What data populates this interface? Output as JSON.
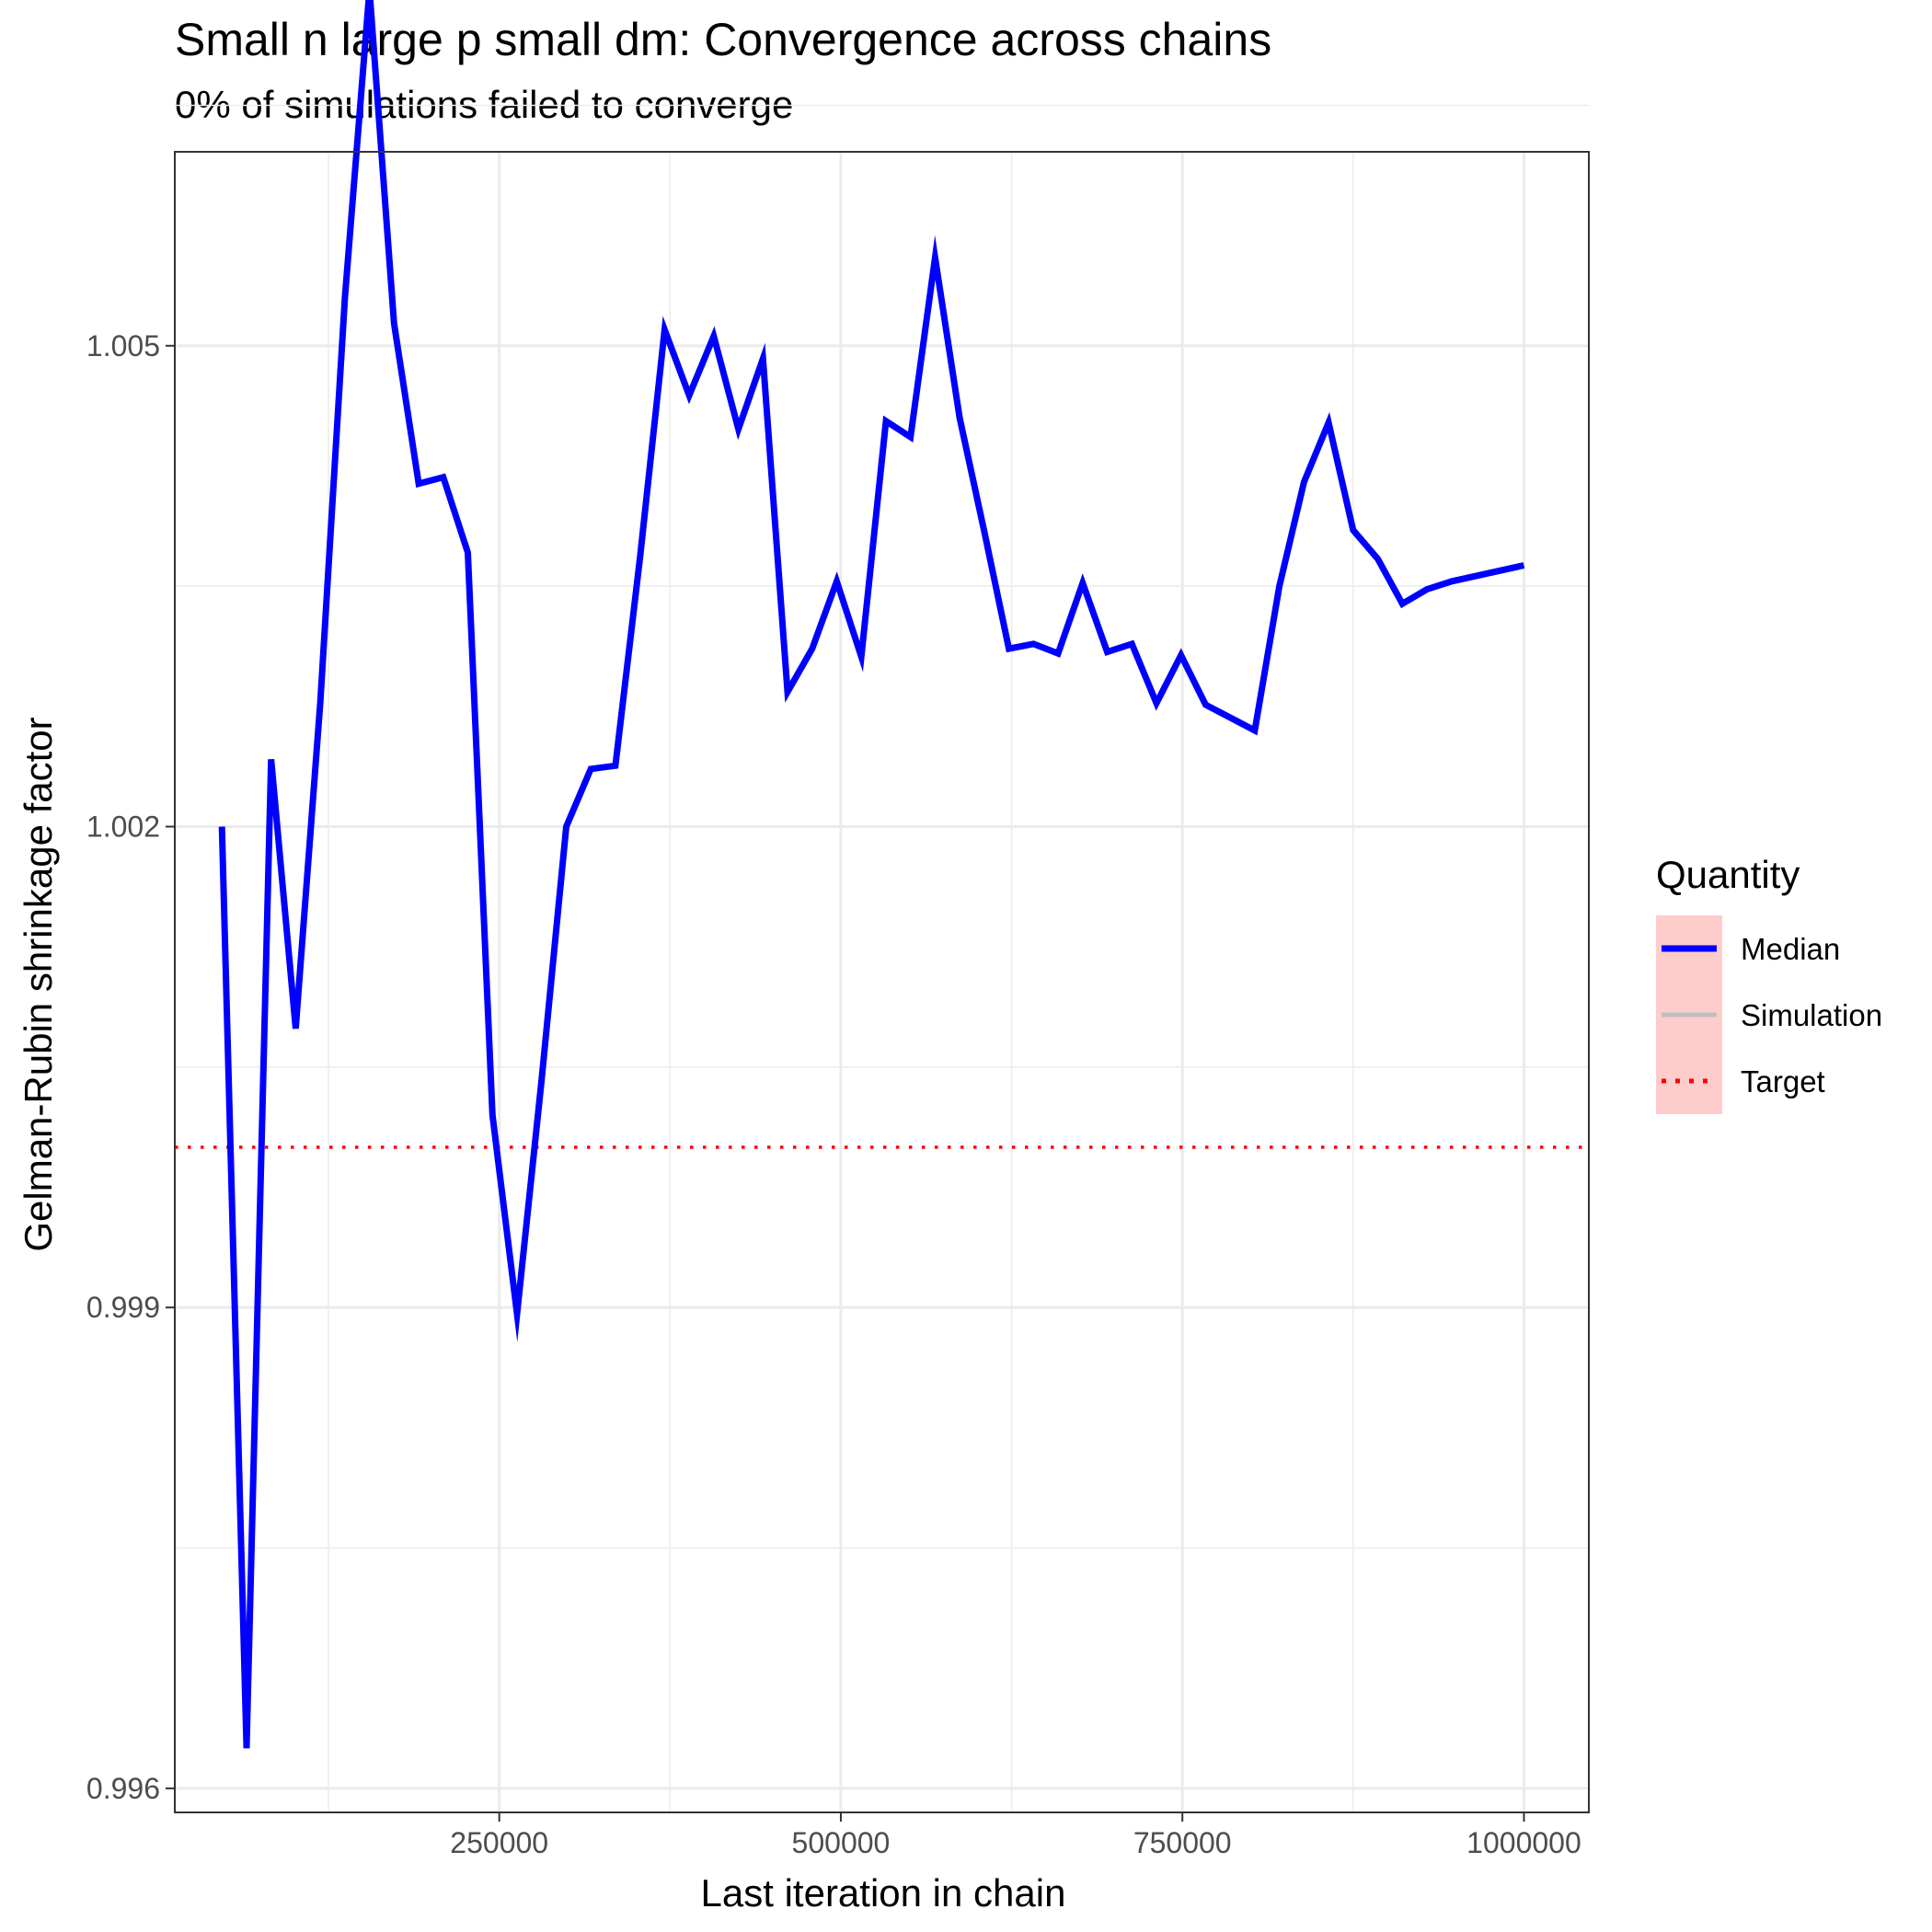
{
  "chart_data": {
    "type": "line",
    "title": "Small n large p small dm: Convergence across chains",
    "subtitle": "0% of simulations failed to converge",
    "xlabel": "Last iteration in chain",
    "ylabel": "Gelman-Rubin shrinkage factor",
    "xlim": [
      12500,
      1047500
    ],
    "ylim": [
      0.99585,
      1.00621
    ],
    "x_ticks": [
      250000,
      500000,
      750000,
      1000000
    ],
    "x_tick_labels": [
      "250000",
      "500000",
      "750000",
      "1000000"
    ],
    "x_minor_ticks": [
      125000,
      375000,
      625000,
      875000
    ],
    "y_ticks": [
      0.996,
      0.999,
      1.002,
      1.005
    ],
    "y_tick_labels": [
      "0.996",
      "0.999",
      "1.002",
      "1.005"
    ],
    "y_minor_ticks": [
      0.9975,
      1.0005,
      1.0035,
      1.0065
    ],
    "grid": true,
    "series": [
      {
        "name": "Median",
        "color": "#0000ff",
        "x": [
          47000,
          65000,
          83000,
          101000,
          119000,
          137000,
          155000,
          173000,
          191000,
          209000,
          227000,
          245000,
          263000,
          281000,
          299000,
          317000,
          335000,
          353000,
          371000,
          389000,
          407000,
          425000,
          443000,
          461000,
          479000,
          497000,
          515000,
          533000,
          551000,
          569000,
          587000,
          605000,
          623000,
          641000,
          659000,
          677000,
          695000,
          713000,
          731000,
          749000,
          767000,
          785000,
          803000,
          821000,
          839000,
          857000,
          875000,
          893000,
          911000,
          929000,
          947000,
          1000000
        ],
        "y": [
          1.002,
          0.99625,
          1.00242,
          1.00074,
          1.00278,
          1.0053,
          1.00722,
          1.00514,
          1.00414,
          1.00418,
          1.00371,
          1.0002,
          0.99896,
          1.00042,
          1.002,
          1.00236,
          1.00238,
          1.00368,
          1.0051,
          1.00469,
          1.00506,
          1.00448,
          1.00492,
          1.00284,
          1.00311,
          1.00353,
          1.00306,
          1.00453,
          1.00443,
          1.00555,
          1.00455,
          1.00384,
          1.00311,
          1.00314,
          1.00308,
          1.00352,
          1.00309,
          1.00314,
          1.00277,
          1.00307,
          1.00276,
          1.00268,
          1.0026,
          1.0035,
          1.00415,
          1.00452,
          1.00385,
          1.00367,
          1.00339,
          1.00348,
          1.00353,
          1.00363
        ]
      },
      {
        "name": "Target",
        "color": "#ff0000",
        "y": 1.0
      }
    ],
    "legend": {
      "title": "Quantity",
      "placement": "right",
      "background": "#ffcccc",
      "items": [
        {
          "label": "Median",
          "style": "solid",
          "color": "#0000ff"
        },
        {
          "label": "Simulation",
          "style": "solid",
          "color": "#bebebe"
        },
        {
          "label": "Target",
          "style": "dotted",
          "color": "#ff0000"
        }
      ]
    }
  }
}
